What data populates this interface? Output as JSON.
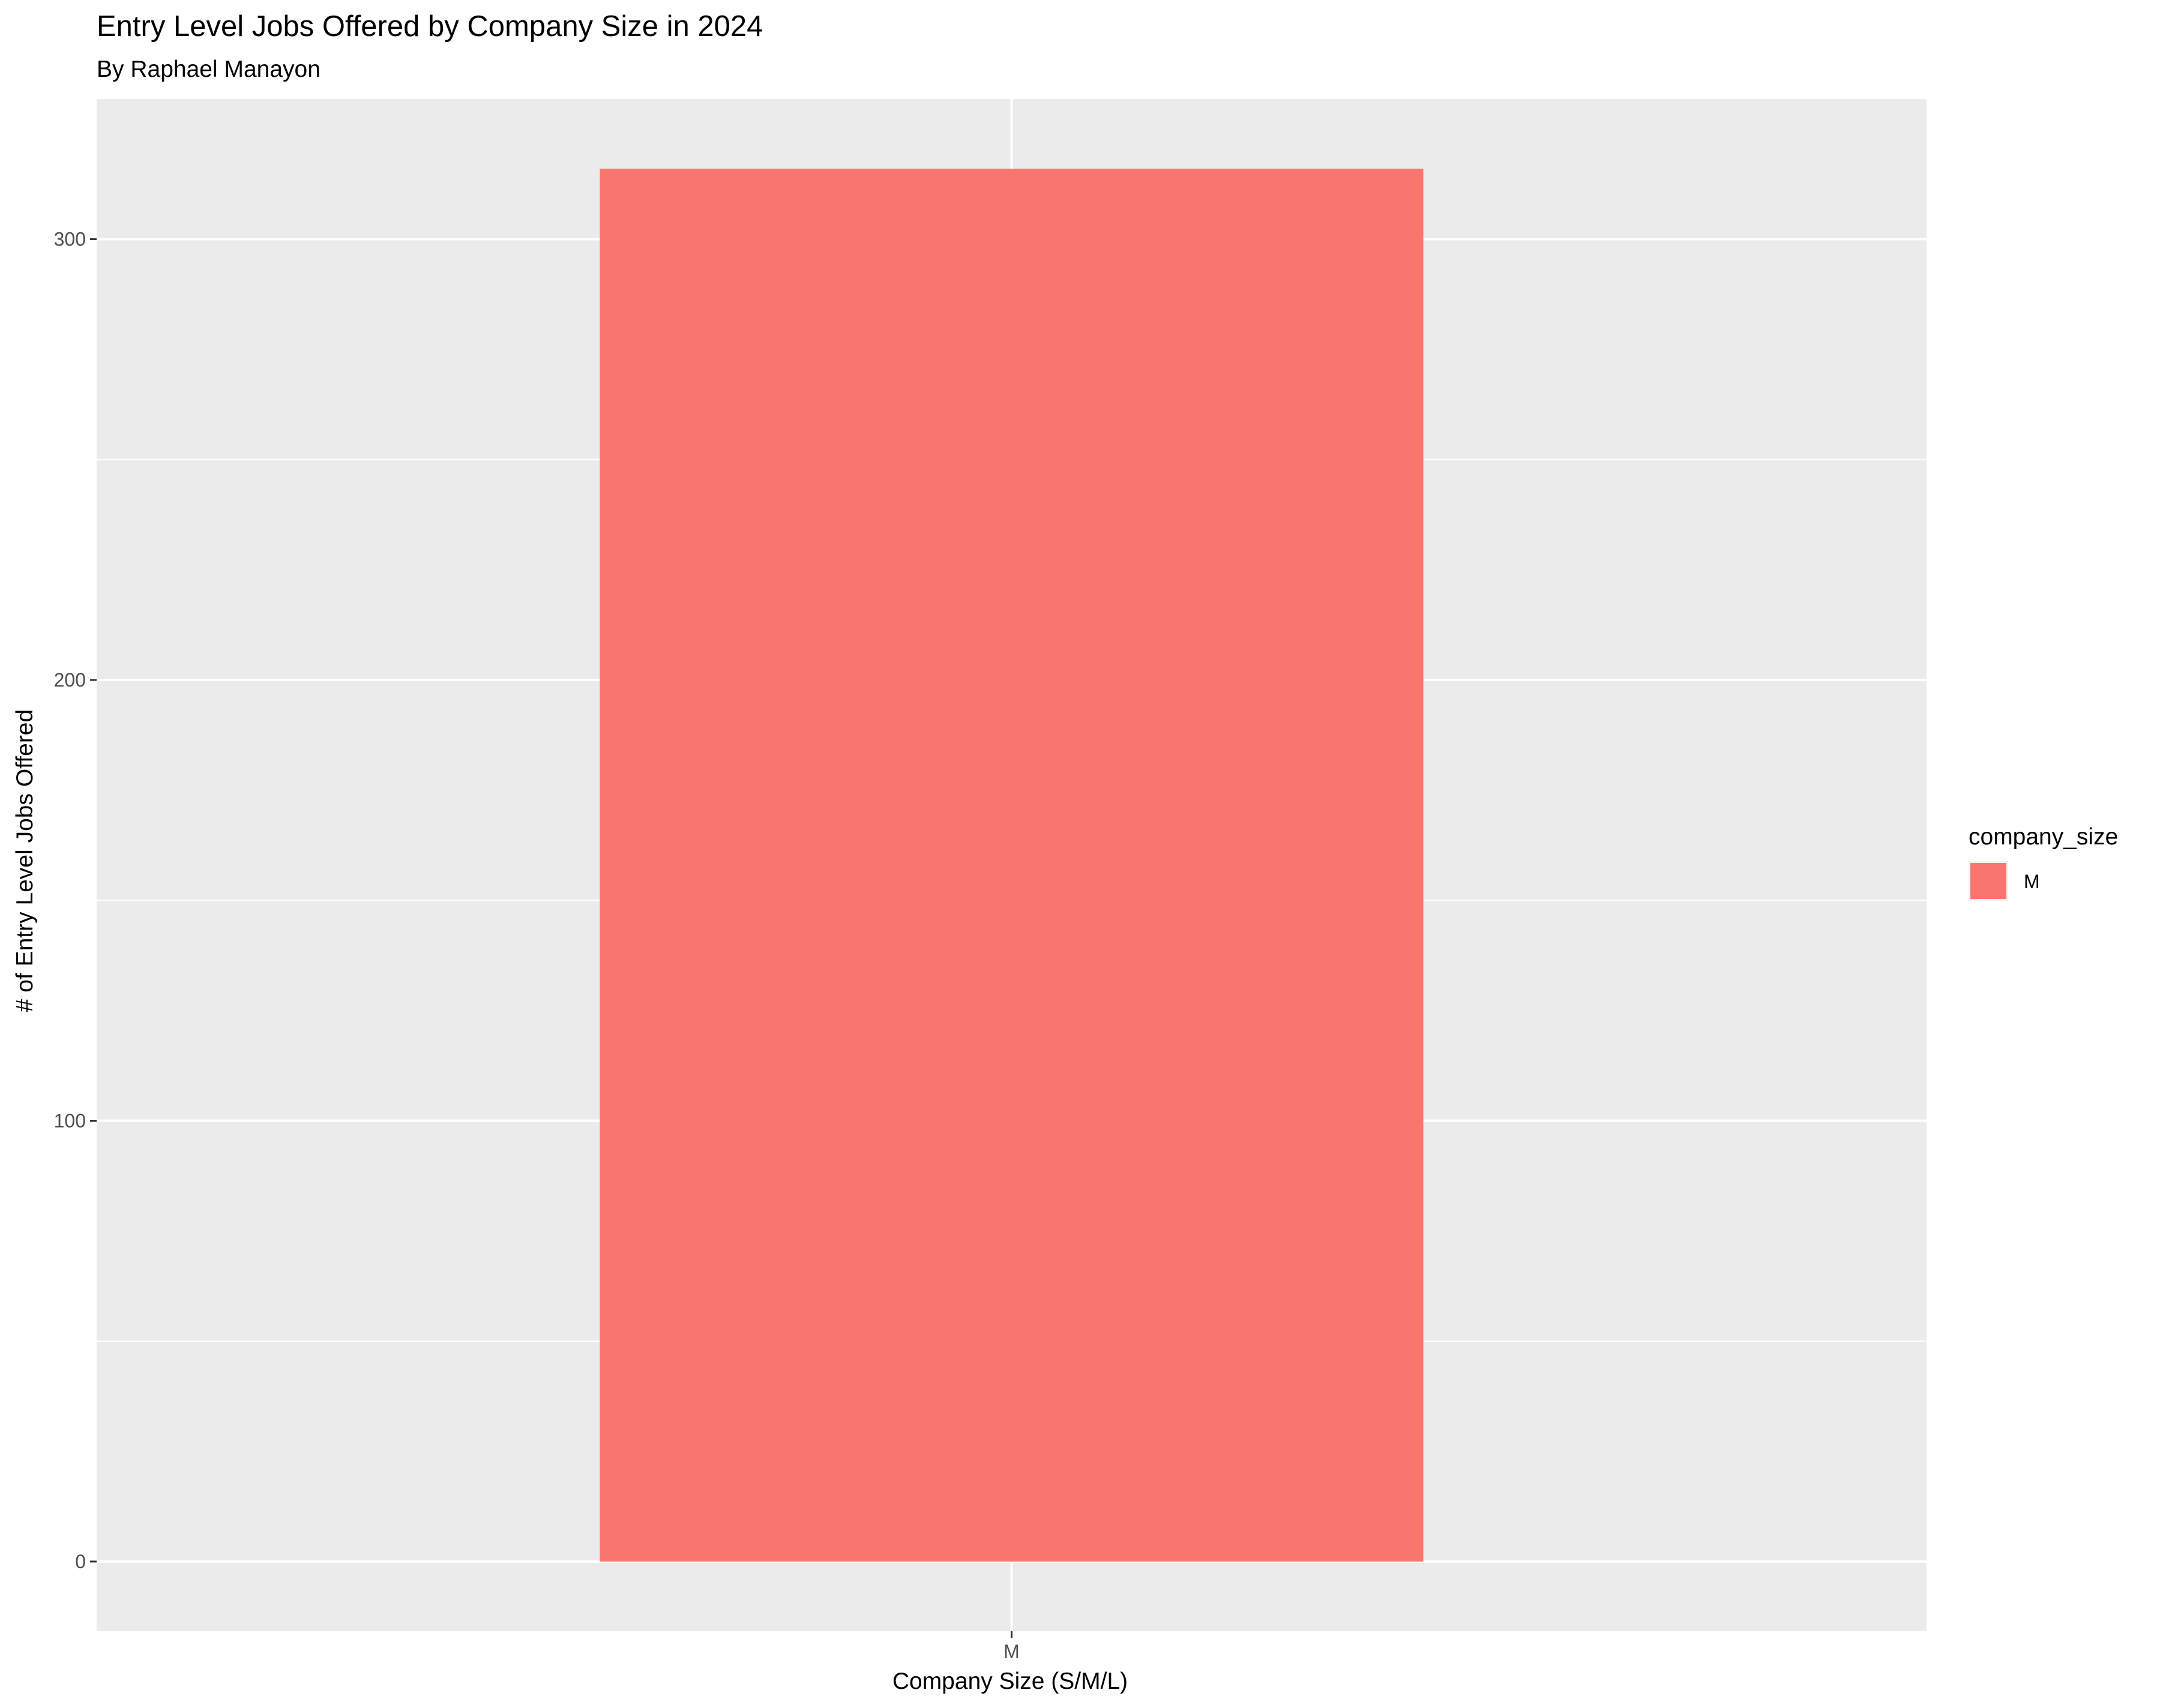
{
  "chart_data": {
    "type": "bar",
    "title": "Entry Level Jobs Offered by Company Size in 2024",
    "subtitle": "By Raphael Manayon",
    "xlabel": "Company Size (S/M/L)",
    "ylabel": "# of Entry Level Jobs Offered",
    "categories": [
      "M"
    ],
    "values": [
      316
    ],
    "ylim": [
      -15.8,
      331.8
    ],
    "yticks": [
      0,
      100,
      200,
      300
    ],
    "ytick_labels": [
      "0",
      "100",
      "200",
      "300"
    ],
    "grid": true,
    "legend": {
      "title": "company_size",
      "position": "right",
      "entries": [
        {
          "label": "M",
          "color": "#F8766D"
        }
      ]
    },
    "colors": {
      "bar": "#F8766D",
      "panel_background": "#EBEBEB",
      "grid": "#FFFFFF"
    }
  }
}
